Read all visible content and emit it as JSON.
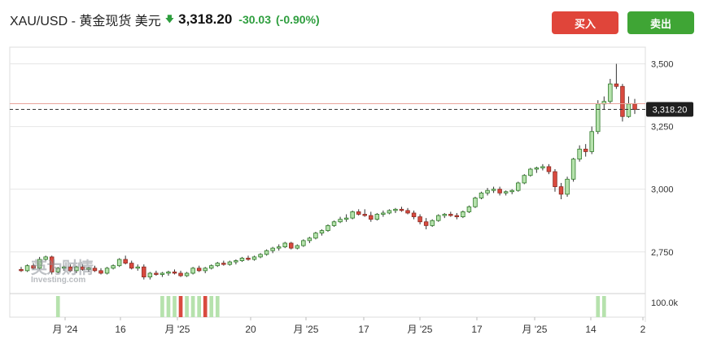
{
  "header": {
    "symbol": "XAU/USD - 黄金现货 美元",
    "direction_icon": "down-arrow-icon",
    "price": "3,318.20",
    "change": "-30.03",
    "change_pct": "(-0.90%)",
    "buy_label": "买入",
    "sell_label": "卖出"
  },
  "colors": {
    "up": "#3fa535",
    "down": "#e0453a",
    "up_fill": "#b6e2ad",
    "down_fill": "#d94a3f",
    "grid": "#e6e6e6",
    "price_line": "#e8a49c"
  },
  "watermark": {
    "cn": "英为财情",
    "en": "Investing.com"
  },
  "chart_data": {
    "type": "candlestick",
    "ylim": [
      2600,
      3560
    ],
    "y_ticks": [
      2750,
      3000,
      3250,
      3500
    ],
    "y_tick_labels": [
      "2,750",
      "3,000",
      "3,250",
      "3,500"
    ],
    "x_tick_labels": [
      "月 '24",
      "16",
      "月 '25",
      "20",
      "月 '25",
      "17",
      "月 '25",
      "17",
      "月 '25",
      "14",
      "2"
    ],
    "current_price": 3318.2,
    "current_price_label": "3,318.20",
    "volume_label": "100.0k",
    "candles": [
      [
        2680,
        2690,
        2670,
        2675
      ],
      [
        2675,
        2700,
        2670,
        2695
      ],
      [
        2695,
        2705,
        2680,
        2685
      ],
      [
        2685,
        2730,
        2680,
        2720
      ],
      [
        2720,
        2735,
        2715,
        2730
      ],
      [
        2730,
        2735,
        2660,
        2670
      ],
      [
        2670,
        2690,
        2665,
        2685
      ],
      [
        2685,
        2695,
        2675,
        2690
      ],
      [
        2690,
        2700,
        2670,
        2675
      ],
      [
        2675,
        2695,
        2665,
        2690
      ],
      [
        2690,
        2700,
        2675,
        2680
      ],
      [
        2680,
        2690,
        2670,
        2685
      ],
      [
        2685,
        2695,
        2670,
        2675
      ],
      [
        2675,
        2685,
        2660,
        2665
      ],
      [
        2665,
        2690,
        2660,
        2685
      ],
      [
        2685,
        2700,
        2680,
        2695
      ],
      [
        2695,
        2725,
        2690,
        2720
      ],
      [
        2720,
        2735,
        2700,
        2705
      ],
      [
        2705,
        2715,
        2680,
        2685
      ],
      [
        2685,
        2700,
        2675,
        2690
      ],
      [
        2690,
        2700,
        2640,
        2650
      ],
      [
        2650,
        2670,
        2640,
        2665
      ],
      [
        2665,
        2675,
        2655,
        2660
      ],
      [
        2660,
        2670,
        2650,
        2665
      ],
      [
        2665,
        2675,
        2655,
        2670
      ],
      [
        2670,
        2680,
        2660,
        2665
      ],
      [
        2665,
        2675,
        2650,
        2655
      ],
      [
        2655,
        2670,
        2650,
        2665
      ],
      [
        2665,
        2690,
        2660,
        2685
      ],
      [
        2685,
        2695,
        2670,
        2675
      ],
      [
        2675,
        2690,
        2665,
        2685
      ],
      [
        2685,
        2700,
        2680,
        2695
      ],
      [
        2695,
        2710,
        2690,
        2705
      ],
      [
        2705,
        2715,
        2695,
        2700
      ],
      [
        2700,
        2715,
        2695,
        2710
      ],
      [
        2710,
        2720,
        2700,
        2715
      ],
      [
        2715,
        2730,
        2710,
        2725
      ],
      [
        2725,
        2735,
        2715,
        2720
      ],
      [
        2720,
        2735,
        2715,
        2730
      ],
      [
        2730,
        2745,
        2725,
        2740
      ],
      [
        2740,
        2760,
        2735,
        2755
      ],
      [
        2755,
        2770,
        2745,
        2765
      ],
      [
        2765,
        2780,
        2755,
        2770
      ],
      [
        2770,
        2790,
        2765,
        2785
      ],
      [
        2785,
        2790,
        2760,
        2765
      ],
      [
        2765,
        2780,
        2760,
        2775
      ],
      [
        2775,
        2800,
        2770,
        2795
      ],
      [
        2795,
        2810,
        2785,
        2805
      ],
      [
        2805,
        2830,
        2800,
        2825
      ],
      [
        2825,
        2840,
        2815,
        2835
      ],
      [
        2835,
        2860,
        2830,
        2855
      ],
      [
        2855,
        2875,
        2850,
        2870
      ],
      [
        2870,
        2890,
        2865,
        2880
      ],
      [
        2880,
        2900,
        2870,
        2885
      ],
      [
        2885,
        2915,
        2880,
        2910
      ],
      [
        2910,
        2920,
        2895,
        2900
      ],
      [
        2900,
        2920,
        2890,
        2895
      ],
      [
        2895,
        2910,
        2870,
        2880
      ],
      [
        2880,
        2905,
        2875,
        2900
      ],
      [
        2900,
        2915,
        2890,
        2905
      ],
      [
        2905,
        2920,
        2900,
        2915
      ],
      [
        2915,
        2925,
        2905,
        2920
      ],
      [
        2920,
        2930,
        2910,
        2915
      ],
      [
        2915,
        2925,
        2900,
        2905
      ],
      [
        2905,
        2915,
        2880,
        2890
      ],
      [
        2890,
        2900,
        2860,
        2870
      ],
      [
        2870,
        2885,
        2840,
        2855
      ],
      [
        2855,
        2880,
        2850,
        2875
      ],
      [
        2875,
        2900,
        2870,
        2895
      ],
      [
        2895,
        2905,
        2885,
        2900
      ],
      [
        2900,
        2910,
        2890,
        2895
      ],
      [
        2895,
        2905,
        2880,
        2890
      ],
      [
        2890,
        2915,
        2885,
        2910
      ],
      [
        2910,
        2935,
        2905,
        2930
      ],
      [
        2930,
        2970,
        2925,
        2965
      ],
      [
        2965,
        2990,
        2960,
        2985
      ],
      [
        2985,
        3005,
        2975,
        2995
      ],
      [
        2995,
        3010,
        2985,
        3000
      ],
      [
        3000,
        3010,
        2975,
        2985
      ],
      [
        2985,
        2995,
        2975,
        2990
      ],
      [
        2990,
        3000,
        2980,
        2995
      ],
      [
        2995,
        3030,
        2990,
        3025
      ],
      [
        3025,
        3060,
        3020,
        3055
      ],
      [
        3055,
        3085,
        3050,
        3080
      ],
      [
        3080,
        3090,
        3065,
        3085
      ],
      [
        3085,
        3100,
        3075,
        3090
      ],
      [
        3090,
        3100,
        3060,
        3070
      ],
      [
        3070,
        3080,
        2990,
        3010
      ],
      [
        3010,
        3025,
        2960,
        2980
      ],
      [
        2980,
        3050,
        2970,
        3040
      ],
      [
        3040,
        3125,
        3030,
        3120
      ],
      [
        3120,
        3175,
        3110,
        3160
      ],
      [
        3160,
        3180,
        3130,
        3150
      ],
      [
        3150,
        3250,
        3140,
        3230
      ],
      [
        3230,
        3355,
        3220,
        3340
      ],
      [
        3340,
        3370,
        3320,
        3350
      ],
      [
        3350,
        3440,
        3340,
        3420
      ],
      [
        3420,
        3500,
        3400,
        3410
      ],
      [
        3410,
        3420,
        3270,
        3290
      ],
      [
        3290,
        3370,
        3285,
        3340
      ],
      [
        3340,
        3360,
        3300,
        3318
      ]
    ],
    "volume_bars": [
      {
        "index": 6,
        "color": "up"
      },
      {
        "index": 23,
        "color": "up"
      },
      {
        "index": 24,
        "color": "up"
      },
      {
        "index": 25,
        "color": "up"
      },
      {
        "index": 26,
        "color": "down"
      },
      {
        "index": 27,
        "color": "up"
      },
      {
        "index": 28,
        "color": "up"
      },
      {
        "index": 29,
        "color": "up"
      },
      {
        "index": 30,
        "color": "down"
      },
      {
        "index": 31,
        "color": "up"
      },
      {
        "index": 32,
        "color": "up"
      },
      {
        "index": 94,
        "color": "up"
      },
      {
        "index": 95,
        "color": "up"
      }
    ]
  }
}
